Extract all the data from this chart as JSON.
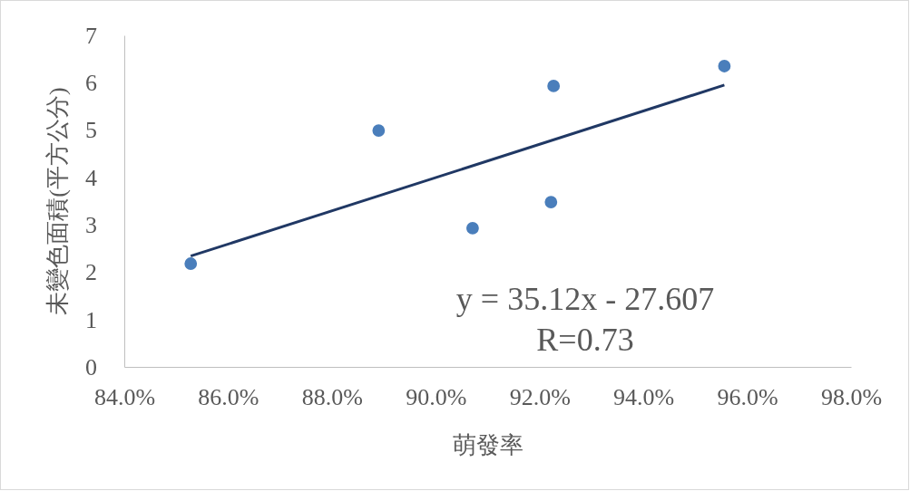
{
  "chart_data": {
    "type": "scatter",
    "xlabel": "萌發率",
    "ylabel": "未變色面積(平方公分)",
    "xlim": [
      84,
      98
    ],
    "xticks": [
      {
        "value": 84,
        "label": "84.0%"
      },
      {
        "value": 86,
        "label": "86.0%"
      },
      {
        "value": 88,
        "label": "88.0%"
      },
      {
        "value": 90,
        "label": "90.0%"
      },
      {
        "value": 92,
        "label": "92.0%"
      },
      {
        "value": 94,
        "label": "94.0%"
      },
      {
        "value": 96,
        "label": "96.0%"
      },
      {
        "value": 98,
        "label": "98.0%"
      }
    ],
    "ylim": [
      0,
      7
    ],
    "yticks": [
      0,
      1,
      2,
      3,
      4,
      5,
      6,
      7
    ],
    "grid": false,
    "series": [
      {
        "marker": "circle",
        "color": "#4a7ebb",
        "x": [
          85.28,
          88.9,
          90.71,
          92.22,
          92.27,
          95.56
        ],
        "values": [
          2.18,
          4.99,
          2.93,
          3.48,
          5.93,
          6.35
        ]
      },
      {
        "type": "line",
        "color": "#203864",
        "x": [
          85.28,
          95.56
        ],
        "values": [
          2.34,
          5.95
        ]
      }
    ],
    "annotations": [
      "y = 35.12x - 27.607",
      "R=0.73"
    ]
  }
}
